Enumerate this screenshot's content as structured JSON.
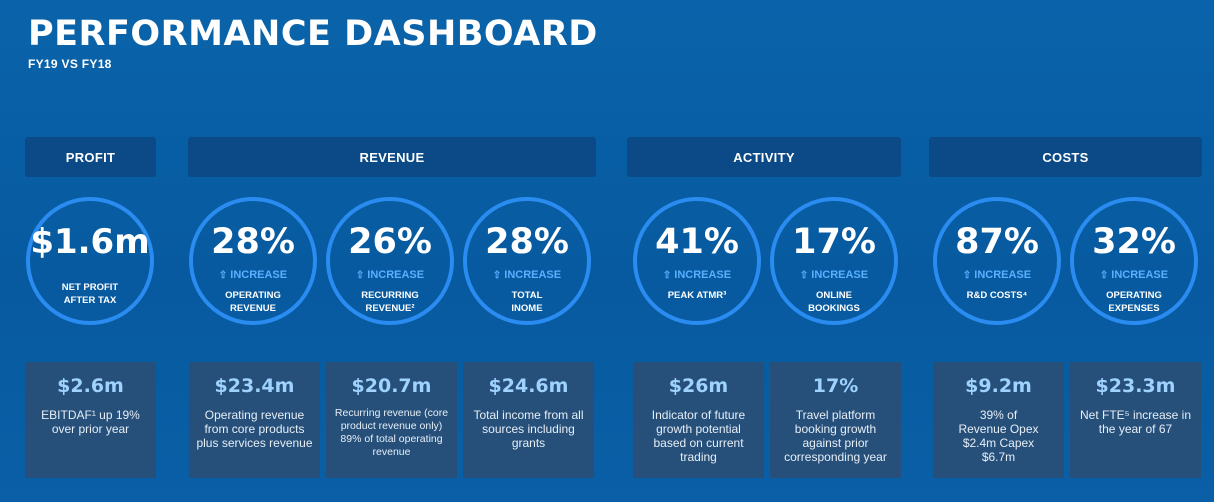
{
  "header": {
    "title": "PERFORMANCE DASHBOARD",
    "subtitle": "FY19 VS FY18"
  },
  "sections": {
    "profit": "PROFIT",
    "revenue": "REVENUE",
    "activity": "ACTIVITY",
    "costs": "COSTS"
  },
  "increase_label": "INCREASE",
  "increase_icon": "up-arrow-icon",
  "colors": {
    "ring": "#2a8cf0",
    "increase": "#58b0ff",
    "card_value": "#9fd2ff",
    "header_bg": "#0b4a86",
    "card_bg": "#26507a"
  },
  "metrics": [
    {
      "value": "$1.6m",
      "label_line1": "NET PROFIT",
      "label_line2": "AFTER TAX",
      "card_value": "$2.6m",
      "card_desc": "EBITDAF¹ up 19% over prior year"
    },
    {
      "value": "28%",
      "label_line1": "OPERATING",
      "label_line2": "REVENUE",
      "card_value": "$23.4m",
      "card_desc": "Operating revenue from core products plus services revenue"
    },
    {
      "value": "26%",
      "label_line1": "RECURRING",
      "label_line2": "REVENUE²",
      "card_value": "$20.7m",
      "card_desc": "Recurring revenue (core product revenue only) 89% of total operating revenue"
    },
    {
      "value": "28%",
      "label_line1": "TOTAL",
      "label_line2": "INOME",
      "card_value": "$24.6m",
      "card_desc": "Total income from all sources including grants"
    },
    {
      "value": "41%",
      "label_line1": "PEAK ATMR³",
      "label_line2": "",
      "card_value": "$26m",
      "card_desc": "Indicator of future growth potential based on current trading"
    },
    {
      "value": "17%",
      "label_line1": "ONLINE",
      "label_line2": "BOOKINGS",
      "card_value": "17%",
      "card_desc": "Travel platform booking growth against prior corresponding year"
    },
    {
      "value": "87%",
      "label_line1": "R&D COSTS⁴",
      "label_line2": "",
      "card_value": "$9.2m",
      "card_desc": "39% of Revenue Opex $2.4m Capex $6.7m"
    },
    {
      "value": "32%",
      "label_line1": "OPERATING",
      "label_line2": "EXPENSES",
      "card_value": "$23.3m",
      "card_desc": "Net FTE⁵ increase in the year of 67"
    }
  ]
}
